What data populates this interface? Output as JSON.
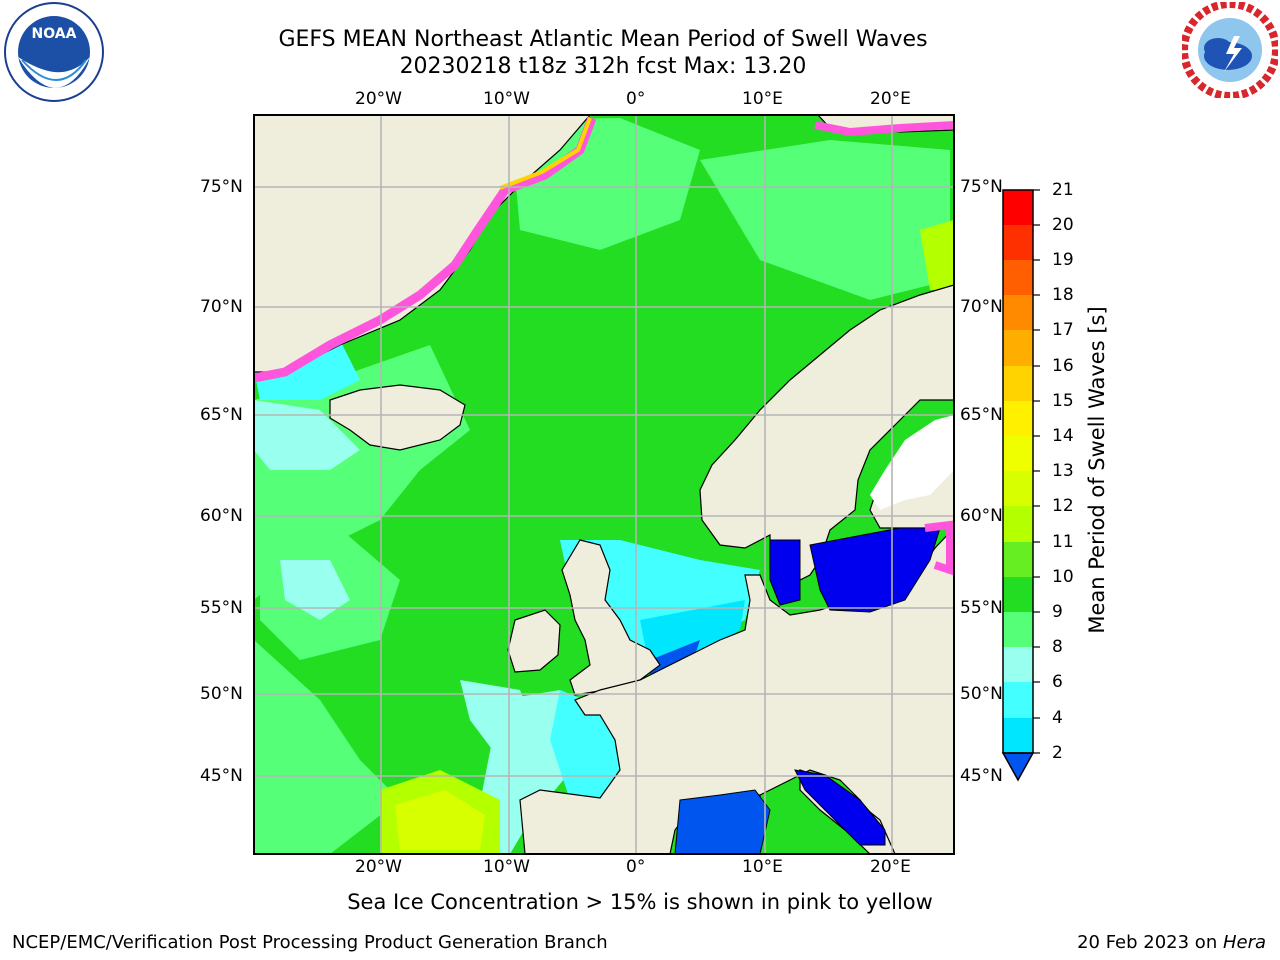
{
  "header": {
    "title_line1": "GEFS MEAN Northeast Atlantic Mean Period of Swell Waves",
    "title_line2": "20230218 t18z 312h fcst   Max: 13.20"
  },
  "logos": {
    "left": {
      "icon": "noaa-logo",
      "text": "NOAA",
      "ring_text": "NATIONAL OCEANIC AND ATMOSPHERIC ADMINISTRATION · U.S. DEPARTMENT OF COMMERCE"
    },
    "right": {
      "icon": "nws-logo",
      "ring_text": "NATIONAL WEATHER SERVICE"
    }
  },
  "map": {
    "projection": "lat-lon",
    "lon_range": [
      -30,
      25
    ],
    "lat_range": [
      41,
      78
    ],
    "longitude_labels": [
      "20°W",
      "10°W",
      "0°",
      "10°E",
      "20°E"
    ],
    "latitude_labels": [
      "75°N",
      "70°N",
      "65°N",
      "60°N",
      "55°N",
      "50°N",
      "45°N"
    ],
    "colors": {
      "land": "#efeddc",
      "sea_ice_edge": "#ff55dd",
      "grid": "#b5b5b5",
      "coast": "#000000"
    }
  },
  "colorbar": {
    "title": "Mean Period of Swell Waves [s]",
    "tick_labels": [
      "21",
      "20",
      "19",
      "18",
      "17",
      "16",
      "15",
      "14",
      "13",
      "12",
      "11",
      "10",
      "9",
      "8",
      "6",
      "4",
      "2"
    ],
    "colors": [
      "#ff0000",
      "#ff3000",
      "#ff5f00",
      "#ff8a00",
      "#ffae00",
      "#ffd300",
      "#fff000",
      "#f0ff00",
      "#d7ff00",
      "#b4ff00",
      "#66ee22",
      "#22dd22",
      "#55ff77",
      "#99ffee",
      "#44ffff",
      "#00e6ff",
      "#0090ff",
      "#0055ee"
    ],
    "extend": "min"
  },
  "caption": "Sea Ice Concentration > 15% is shown in pink to yellow",
  "footer": {
    "left": "NCEP/EMC/Verification Post Processing Product Generation Branch",
    "right_date": "20 Feb 2023 on ",
    "right_host": "Hera"
  }
}
